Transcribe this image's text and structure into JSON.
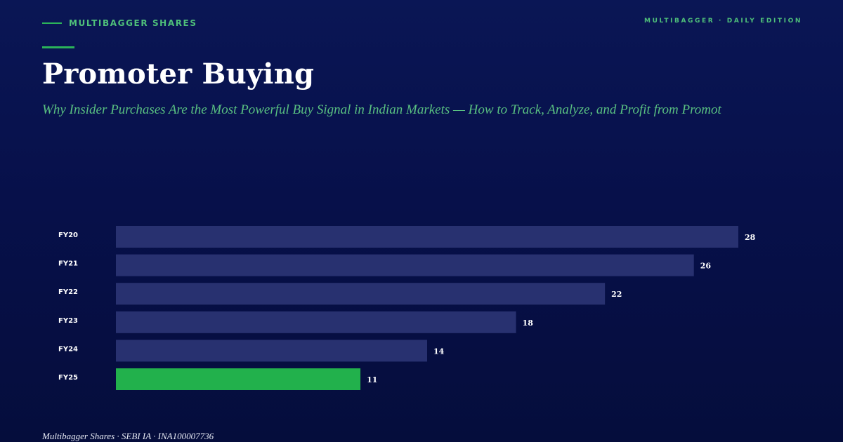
{
  "header": {
    "brand": "MULTIBAGGER SHARES",
    "edition": "MULTIBAGGER · DAILY EDITION"
  },
  "title": "Promoter Buying",
  "subtitle": "Why Insider Purchases Are the Most Powerful Buy Signal in Indian Markets — How to Track, Analyze, and Profit from Promot",
  "footer": "Multibagger Shares · SEBI IA · INA100007736",
  "colors": {
    "bar": "#283170",
    "highlight": "#22b14c",
    "accent": "#2bb35a"
  },
  "chart_data": {
    "type": "bar",
    "orientation": "horizontal",
    "categories": [
      "FY20",
      "FY21",
      "FY22",
      "FY23",
      "FY24",
      "FY25"
    ],
    "values": [
      28,
      26,
      22,
      18,
      14,
      11
    ],
    "highlight_category": "FY25",
    "data_labels": true,
    "xlim": [
      0,
      28
    ],
    "grid": false,
    "title": "",
    "xlabel": "",
    "ylabel": ""
  }
}
